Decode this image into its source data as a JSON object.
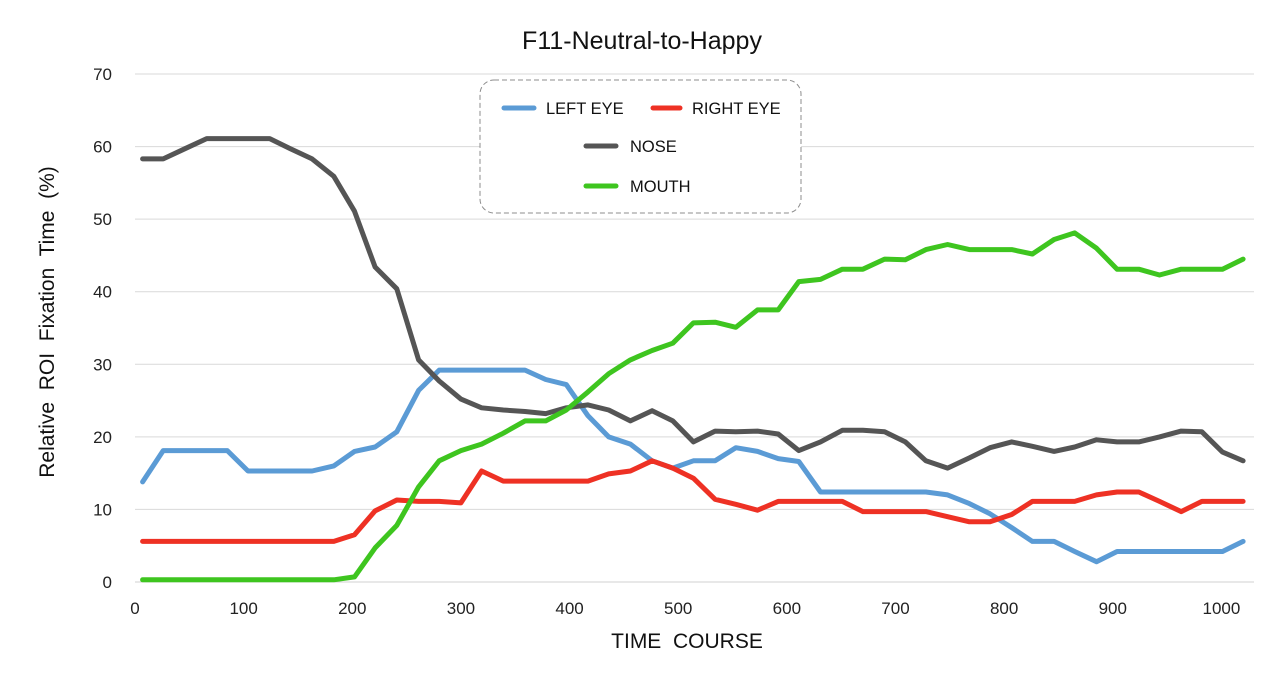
{
  "chart_data": {
    "type": "line",
    "title": "F11-Neutral-to-Happy",
    "xlabel": "TIME  COURSE",
    "ylabel": "Relative  ROI  Fixation  Time  (%)",
    "xlim": [
      0,
      1030
    ],
    "ylim": [
      0,
      70
    ],
    "xticks": [
      0,
      100,
      200,
      300,
      400,
      500,
      600,
      700,
      800,
      900,
      1000
    ],
    "yticks": [
      0,
      10,
      20,
      30,
      40,
      50,
      60,
      70
    ],
    "grid": "horizontal",
    "legend_position": "top-center",
    "x": [
      7,
      26,
      46,
      66,
      85,
      104,
      124,
      143,
      163,
      183,
      202,
      221,
      241,
      261,
      280,
      300,
      319,
      339,
      359,
      378,
      397,
      417,
      436,
      456,
      476,
      495,
      514,
      534,
      553,
      573,
      592,
      611,
      631,
      651,
      670,
      690,
      709,
      728,
      748,
      768,
      787,
      807,
      826,
      846,
      865,
      885,
      904,
      924,
      943,
      963,
      982,
      1001,
      1020
    ],
    "series": [
      {
        "name": "LEFT EYE",
        "color": "#5b9bd5",
        "values": [
          13.8,
          18.1,
          18.1,
          18.1,
          18.1,
          15.3,
          15.3,
          15.3,
          15.3,
          16.0,
          18.0,
          18.6,
          20.7,
          26.4,
          29.2,
          29.2,
          29.2,
          29.2,
          29.2,
          27.9,
          27.2,
          22.9,
          20.0,
          19.0,
          16.7,
          15.7,
          16.7,
          16.7,
          18.5,
          18.0,
          17.0,
          16.6,
          12.4,
          12.4,
          12.4,
          12.4,
          12.4,
          12.4,
          12.0,
          10.8,
          9.4,
          7.5,
          5.6,
          5.6,
          4.2,
          2.8,
          4.2,
          4.2,
          4.2,
          4.2,
          4.2,
          4.2,
          5.6
        ]
      },
      {
        "name": "RIGHT EYE",
        "color": "#ee3124",
        "values": [
          5.6,
          5.6,
          5.6,
          5.6,
          5.6,
          5.6,
          5.6,
          5.6,
          5.6,
          5.6,
          6.5,
          9.8,
          11.3,
          11.1,
          11.1,
          10.9,
          15.3,
          13.9,
          13.9,
          13.9,
          13.9,
          13.9,
          14.9,
          15.3,
          16.7,
          15.7,
          14.3,
          11.4,
          10.7,
          9.9,
          11.1,
          11.1,
          11.1,
          11.1,
          9.7,
          9.7,
          9.7,
          9.7,
          9.0,
          8.3,
          8.3,
          9.3,
          11.1,
          11.1,
          11.1,
          12.0,
          12.4,
          12.4,
          11.1,
          9.7,
          11.1,
          11.1,
          11.1
        ]
      },
      {
        "name": "NOSE",
        "color": "#555555",
        "values": [
          58.3,
          58.3,
          59.7,
          61.1,
          61.1,
          61.1,
          61.1,
          59.7,
          58.3,
          55.9,
          51.1,
          43.4,
          40.4,
          30.6,
          27.7,
          25.2,
          24.0,
          23.7,
          23.5,
          23.2,
          24.0,
          24.4,
          23.7,
          22.2,
          23.6,
          22.2,
          19.3,
          20.8,
          20.7,
          20.8,
          20.4,
          18.1,
          19.3,
          20.9,
          20.9,
          20.7,
          19.3,
          16.7,
          15.7,
          17.1,
          18.5,
          19.3,
          18.7,
          18.0,
          18.6,
          19.6,
          19.3,
          19.3,
          20.0,
          20.8,
          20.7,
          17.9,
          16.7
        ]
      },
      {
        "name": "MOUTH",
        "color": "#3ec51f",
        "values": [
          0.3,
          0.3,
          0.3,
          0.3,
          0.3,
          0.3,
          0.3,
          0.3,
          0.3,
          0.3,
          0.7,
          4.7,
          7.8,
          13.1,
          16.7,
          18.1,
          19.0,
          20.5,
          22.2,
          22.2,
          23.7,
          26.2,
          28.7,
          30.6,
          31.9,
          32.9,
          35.7,
          35.8,
          35.1,
          37.5,
          37.5,
          41.4,
          41.7,
          43.1,
          43.1,
          44.5,
          44.4,
          45.8,
          46.5,
          45.8,
          45.8,
          45.8,
          45.2,
          47.2,
          48.1,
          46.0,
          43.1,
          43.1,
          42.3,
          43.1,
          43.1,
          43.1,
          44.5
        ]
      }
    ]
  }
}
